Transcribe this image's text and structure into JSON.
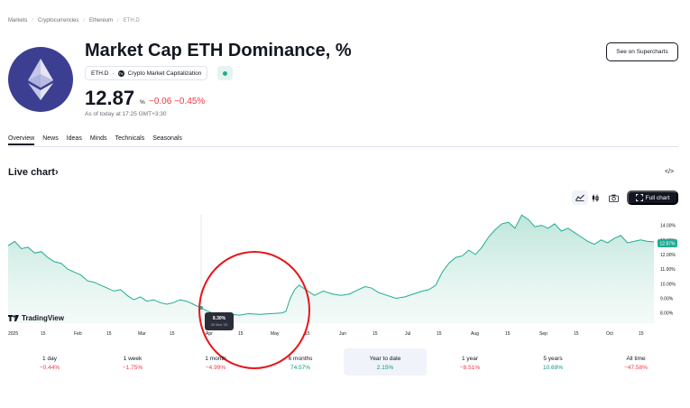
{
  "breadcrumb": [
    "Markets",
    "Cryptocurrencies",
    "Ethereum",
    "ETH.D"
  ],
  "header": {
    "title": "Market Cap ETH Dominance, %",
    "symbol": "ETH.D",
    "source": "Crypto Market Capitalization",
    "supercharts_label": "See on Supercharts"
  },
  "quote": {
    "price": "12.87",
    "unit": "%",
    "change": "−0.06 −0.45%",
    "as_of": "As of today at 17:25 GMT+3:30"
  },
  "tabs": [
    "Overview",
    "News",
    "Ideas",
    "Minds",
    "Technicals",
    "Seasonals"
  ],
  "live_chart": {
    "heading": "Live chart",
    "embed_glyph": "</>",
    "full_chart_label": "Full chart",
    "watermark": "TradingView"
  },
  "colors": {
    "line": "#22ab94",
    "area_top": "#b9e4d8",
    "negative": "#f23645",
    "positive": "#089981",
    "ring": "#e8151b",
    "logo_bg": "#3c3f91"
  },
  "chart_data": {
    "type": "area",
    "y_ticks": [
      "14.00%",
      "13.00%",
      "12.00%",
      "11.00%",
      "10.00%",
      "9.00%",
      "8.00%"
    ],
    "x_ticks": [
      "2025",
      "15",
      "Feb",
      "15",
      "Mar",
      "15",
      "Apr",
      "15",
      "May",
      "15",
      "Jun",
      "15",
      "Jul",
      "15",
      "Aug",
      "15",
      "Sep",
      "15",
      "Oct",
      "15"
    ],
    "last_value_label": "12.87%",
    "tooltip": {
      "value": "8.30%",
      "date": "30 Mar '25"
    },
    "ylim": [
      7.3,
      14.9
    ],
    "points": [
      [
        "2025-01-01",
        12.6
      ],
      [
        "2025-01-04",
        12.9
      ],
      [
        "2025-01-07",
        12.4
      ],
      [
        "2025-01-10",
        12.5
      ],
      [
        "2025-01-13",
        12.1
      ],
      [
        "2025-01-16",
        12.2
      ],
      [
        "2025-01-19",
        11.8
      ],
      [
        "2025-01-22",
        11.5
      ],
      [
        "2025-01-25",
        11.4
      ],
      [
        "2025-01-28",
        11.0
      ],
      [
        "2025-01-31",
        10.8
      ],
      [
        "2025-02-03",
        10.6
      ],
      [
        "2025-02-06",
        10.2
      ],
      [
        "2025-02-09",
        10.1
      ],
      [
        "2025-02-12",
        9.9
      ],
      [
        "2025-02-15",
        9.7
      ],
      [
        "2025-02-18",
        9.5
      ],
      [
        "2025-02-21",
        9.6
      ],
      [
        "2025-02-24",
        9.2
      ],
      [
        "2025-02-27",
        8.9
      ],
      [
        "2025-03-02",
        9.1
      ],
      [
        "2025-03-05",
        8.8
      ],
      [
        "2025-03-08",
        8.9
      ],
      [
        "2025-03-11",
        8.7
      ],
      [
        "2025-03-14",
        8.6
      ],
      [
        "2025-03-17",
        8.7
      ],
      [
        "2025-03-20",
        8.9
      ],
      [
        "2025-03-23",
        8.8
      ],
      [
        "2025-03-26",
        8.6
      ],
      [
        "2025-03-30",
        8.3
      ],
      [
        "2025-04-02",
        8.1
      ],
      [
        "2025-04-05",
        7.9
      ],
      [
        "2025-04-08",
        7.8
      ],
      [
        "2025-04-12",
        7.9
      ],
      [
        "2025-04-16",
        7.85
      ],
      [
        "2025-04-20",
        7.95
      ],
      [
        "2025-04-25",
        7.9
      ],
      [
        "2025-04-30",
        7.95
      ],
      [
        "2025-05-05",
        8.0
      ],
      [
        "2025-05-07",
        8.1
      ],
      [
        "2025-05-09",
        9.0
      ],
      [
        "2025-05-11",
        9.6
      ],
      [
        "2025-05-13",
        9.9
      ],
      [
        "2025-05-16",
        9.6
      ],
      [
        "2025-05-20",
        9.2
      ],
      [
        "2025-05-24",
        9.5
      ],
      [
        "2025-05-28",
        9.3
      ],
      [
        "2025-06-01",
        9.2
      ],
      [
        "2025-06-05",
        9.3
      ],
      [
        "2025-06-09",
        9.6
      ],
      [
        "2025-06-12",
        9.8
      ],
      [
        "2025-06-15",
        9.7
      ],
      [
        "2025-06-18",
        9.4
      ],
      [
        "2025-06-22",
        9.2
      ],
      [
        "2025-06-26",
        9.0
      ],
      [
        "2025-06-30",
        9.1
      ],
      [
        "2025-07-04",
        9.3
      ],
      [
        "2025-07-08",
        9.5
      ],
      [
        "2025-07-11",
        9.6
      ],
      [
        "2025-07-14",
        9.9
      ],
      [
        "2025-07-17",
        10.8
      ],
      [
        "2025-07-20",
        11.4
      ],
      [
        "2025-07-23",
        11.8
      ],
      [
        "2025-07-26",
        11.9
      ],
      [
        "2025-07-29",
        12.3
      ],
      [
        "2025-08-01",
        12.0
      ],
      [
        "2025-08-04",
        12.5
      ],
      [
        "2025-08-07",
        13.2
      ],
      [
        "2025-08-10",
        13.7
      ],
      [
        "2025-08-13",
        14.1
      ],
      [
        "2025-08-16",
        14.2
      ],
      [
        "2025-08-19",
        13.8
      ],
      [
        "2025-08-22",
        14.7
      ],
      [
        "2025-08-25",
        14.4
      ],
      [
        "2025-08-28",
        13.9
      ],
      [
        "2025-08-31",
        14.0
      ],
      [
        "2025-09-03",
        13.8
      ],
      [
        "2025-09-06",
        14.1
      ],
      [
        "2025-09-09",
        13.6
      ],
      [
        "2025-09-12",
        13.8
      ],
      [
        "2025-09-15",
        13.5
      ],
      [
        "2025-09-18",
        13.2
      ],
      [
        "2025-09-21",
        12.9
      ],
      [
        "2025-09-24",
        12.7
      ],
      [
        "2025-09-27",
        13.0
      ],
      [
        "2025-09-30",
        12.8
      ],
      [
        "2025-10-03",
        13.1
      ],
      [
        "2025-10-06",
        13.3
      ],
      [
        "2025-10-09",
        12.8
      ],
      [
        "2025-10-12",
        12.9
      ],
      [
        "2025-10-15",
        13.0
      ],
      [
        "2025-10-18",
        12.9
      ],
      [
        "2025-10-21",
        12.87
      ]
    ]
  },
  "periods": [
    {
      "label": "1 day",
      "value": "−0.44%",
      "sign": "neg"
    },
    {
      "label": "1 week",
      "value": "−1.75%",
      "sign": "neg"
    },
    {
      "label": "1 month",
      "value": "−4.99%",
      "sign": "neg"
    },
    {
      "label": "6 months",
      "value": "74.57%",
      "sign": "pos"
    },
    {
      "label": "Year to date",
      "value": "2.15%",
      "sign": "pos"
    },
    {
      "label": "1 year",
      "value": "−8.51%",
      "sign": "neg"
    },
    {
      "label": "5 years",
      "value": "10.69%",
      "sign": "pos"
    },
    {
      "label": "All time",
      "value": "−47.58%",
      "sign": "neg"
    }
  ]
}
